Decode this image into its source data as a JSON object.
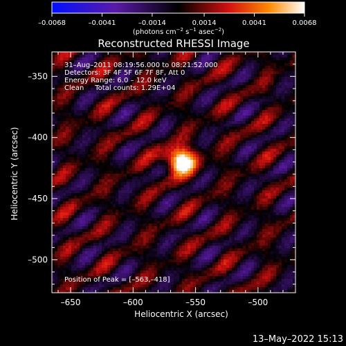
{
  "window": {
    "title": "Reconstructed RHESSI Image",
    "footer_timestamp": "13–May–2022 15:13"
  },
  "colorbar": {
    "tick_labels": [
      "–0.0068",
      "–0.0041",
      "–0.0014",
      "0.0014",
      "0.0041",
      "0.0068"
    ],
    "tick_values": [
      -0.0068,
      -0.0041,
      -0.0014,
      0.0014,
      0.0041,
      0.0068
    ],
    "range": [
      -0.0068,
      0.0068
    ],
    "units_prefix": "(photons cm",
    "units_exp1": "−2",
    "units_mid": " s",
    "units_exp2": "−1",
    "units_mid2": " asec",
    "units_exp3": "−2",
    "units_suffix": ")",
    "palette": [
      "#0010ff",
      "#5a1aa8",
      "#000000",
      "#d41010",
      "#ff8a00",
      "#ffffff"
    ]
  },
  "plot": {
    "xlabel": "Heliocentric X (arcsec)",
    "ylabel": "Heliocentric Y (arcsec)",
    "xlim": [
      -665,
      -470
    ],
    "ylim": [
      -527,
      -330
    ],
    "x_ticks": [
      -650,
      -600,
      -550,
      -500
    ],
    "x_tick_labels": [
      "–650",
      "–600",
      "–550",
      "–500"
    ],
    "y_ticks": [
      -350,
      -400,
      -450,
      -500
    ],
    "y_tick_labels": [
      "–350",
      "–400",
      "–450",
      "–500"
    ],
    "info_lines": [
      "31–Aug–2011 08:19:56.000 to 08:21:52.000",
      "Detectors: 3F 4F 5F 6F 7F 8F, Att 0",
      "Energy Range: 6.0 – 12.0 keV",
      "Clean     Total counts: 1.29E+04"
    ],
    "peak_label": "Position of Peak = [–563,–418]",
    "peak": [
      -563,
      -418
    ]
  }
}
